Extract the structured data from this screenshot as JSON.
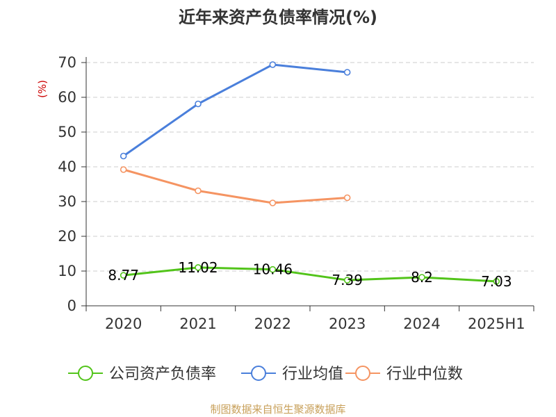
{
  "chart_data": {
    "type": "line",
    "title": "近年来资产负债率情况(%)",
    "ylabel": "(%)",
    "categories": [
      "2020",
      "2021",
      "2022",
      "2023",
      "2024",
      "2025H1"
    ],
    "ylim": [
      0,
      70
    ],
    "yticks": [
      "0",
      "10",
      "20",
      "30",
      "40",
      "50",
      "60",
      "70"
    ],
    "grid": true,
    "legend_position": "bottom",
    "series": [
      {
        "name": "公司资产负债率",
        "color": "#52c41a",
        "values": [
          8.77,
          11.02,
          10.46,
          7.39,
          8.2,
          7.03
        ],
        "labels": [
          "8.77",
          "11.02",
          "10.46",
          "7.39",
          "8.2",
          "7.03"
        ]
      },
      {
        "name": "行业均值",
        "color": "#4a7fdb",
        "values": [
          43.1,
          58.1,
          69.4,
          67.2,
          null,
          null
        ]
      },
      {
        "name": "行业中位数",
        "color": "#f59462",
        "values": [
          39.2,
          33.1,
          29.6,
          31.1,
          null,
          null
        ]
      }
    ],
    "ylabel_color": "#cc0000",
    "source": "制图数据来自恒生聚源数据库",
    "source_color": "#c8a05a"
  }
}
